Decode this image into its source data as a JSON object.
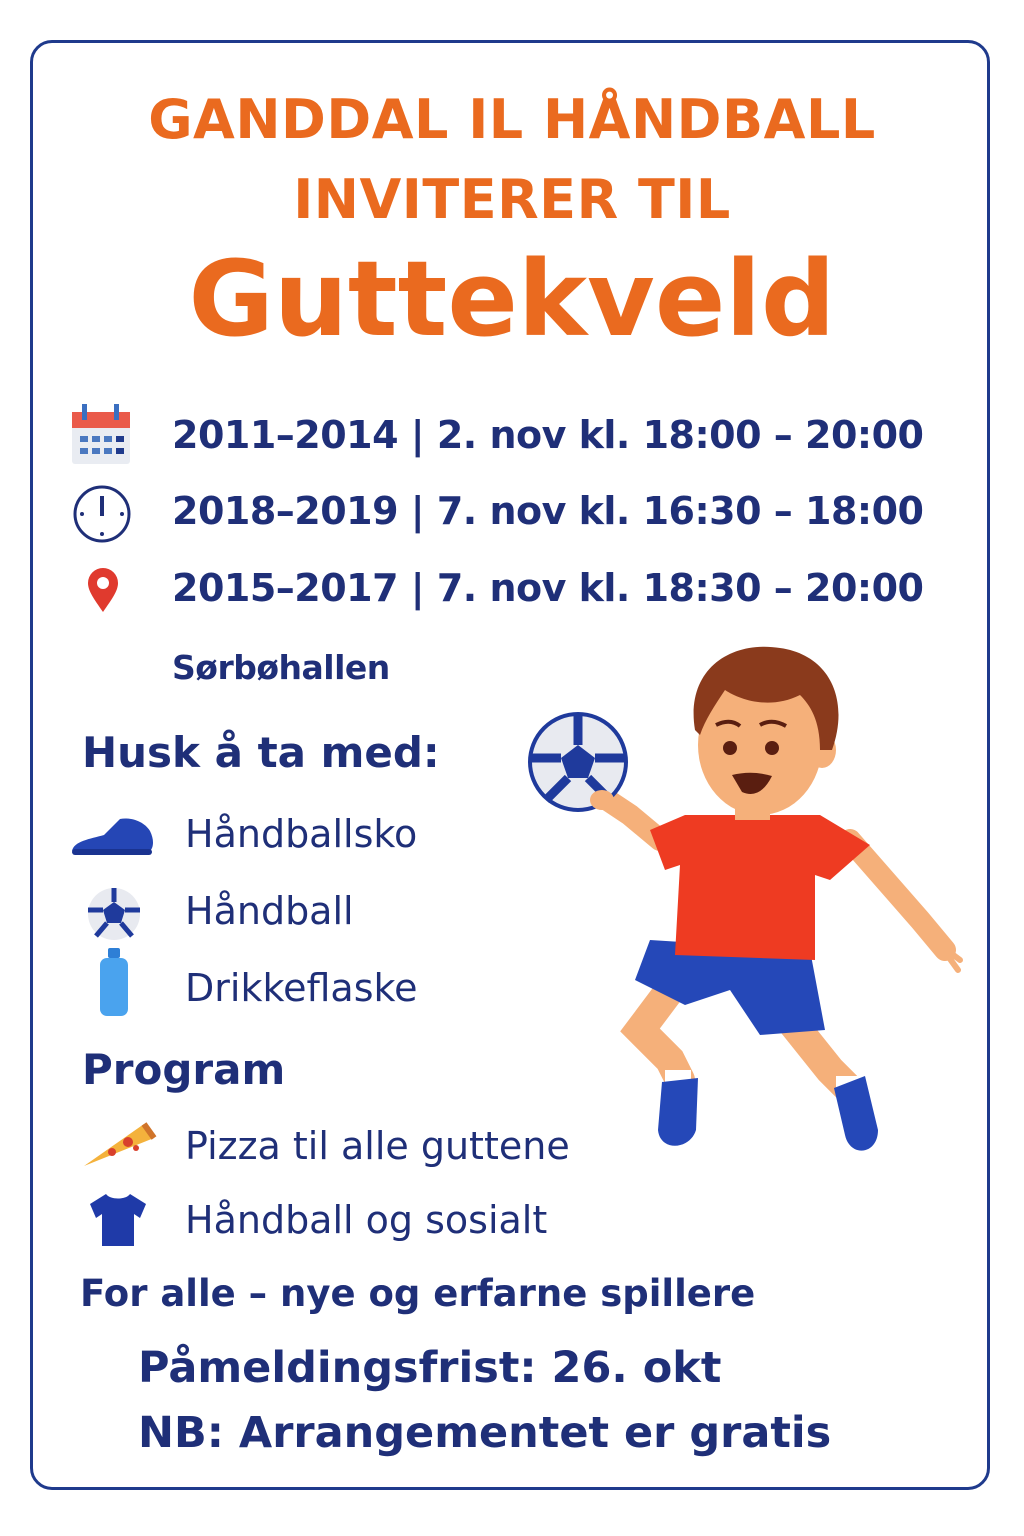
{
  "colors": {
    "orange": "#ea6a1f",
    "navy": "#1f2f78",
    "border": "#1f3a8c"
  },
  "header": {
    "line1": "GANDDAL IL HÅNDBALL",
    "line2": "INVITERER TIL",
    "event": "Guttekveld"
  },
  "schedule": [
    {
      "icon": "calendar-icon",
      "text": "2011–2014 | 2. nov kl. 18:00 – 20:00"
    },
    {
      "icon": "clock-icon",
      "text": "2018–2019 | 7. nov kl. 16:30 – 18:00"
    },
    {
      "icon": "location-pin-icon",
      "text": "2015–2017 | 7. nov kl. 18:30 – 20:00"
    }
  ],
  "venue": "Sørbøhallen",
  "bring": {
    "heading": "Husk å ta med:",
    "items": [
      {
        "icon": "shoe-icon",
        "label": "Håndballsko"
      },
      {
        "icon": "ball-icon",
        "label": "Håndball"
      },
      {
        "icon": "bottle-icon",
        "label": "Drikkeflaske"
      }
    ]
  },
  "program": {
    "heading": "Program",
    "items": [
      {
        "icon": "pizza-icon",
        "label": "Pizza til alle guttene"
      },
      {
        "icon": "shirt-icon",
        "label": "Håndball og sosialt"
      }
    ]
  },
  "footer": {
    "audience": "For alle – nye og erfarne spillere",
    "deadline": "Påmeldingsfrist: 26. okt",
    "note": "NB: Arrangementet er gratis"
  }
}
